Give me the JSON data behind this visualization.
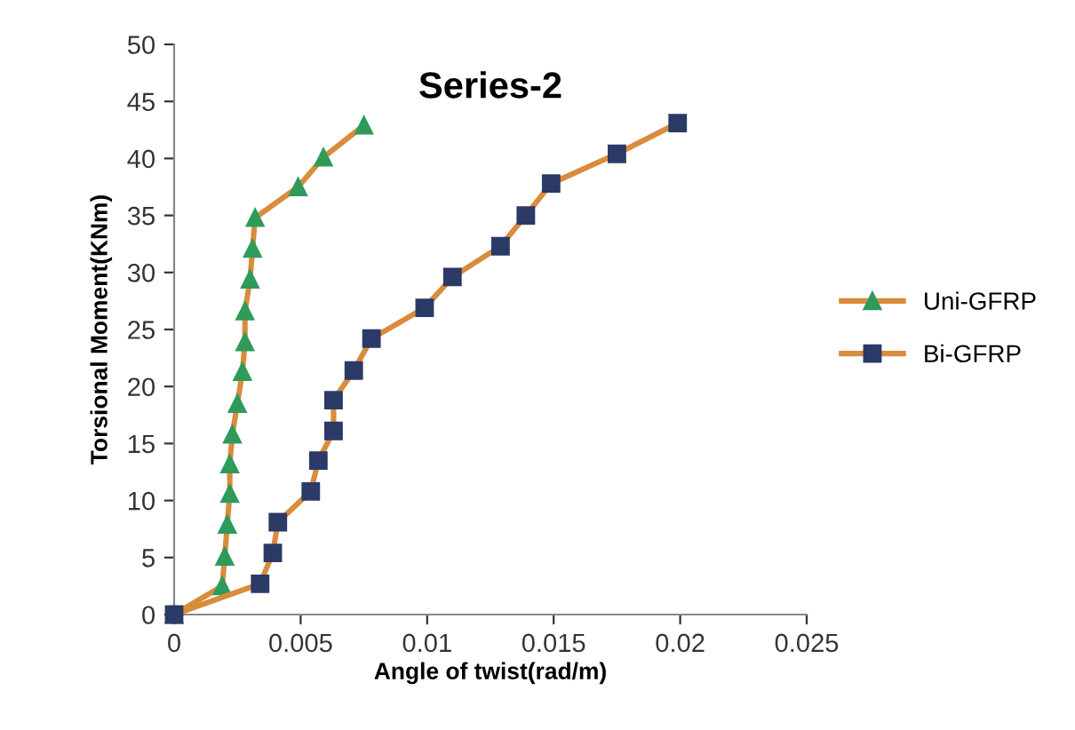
{
  "chart_data": {
    "type": "line",
    "title": "Series-2",
    "xlabel": "Angle of twist(rad/m)",
    "ylabel": "Torsional Moment(KNm)",
    "xlim": [
      0,
      0.025
    ],
    "xticks": [
      0,
      0.005,
      0.01,
      0.015,
      0.02,
      0.025
    ],
    "ylim": [
      0,
      50
    ],
    "yticks": [
      0,
      5,
      10,
      15,
      20,
      25,
      30,
      35,
      40,
      45,
      50
    ],
    "grid": false,
    "legend": "right",
    "line_style": "solid",
    "series": [
      {
        "name": "Uni-GFRP",
        "color": "#2e9b5a",
        "marker": "triangle",
        "x": [
          0,
          0.0019,
          0.002,
          0.0021,
          0.0022,
          0.0022,
          0.0023,
          0.0025,
          0.0027,
          0.0028,
          0.0028,
          0.003,
          0.0031,
          0.0032,
          0.0049,
          0.0059,
          0.0075
        ],
        "values": [
          0,
          2.5,
          5.1,
          7.9,
          10.6,
          13.2,
          15.8,
          18.5,
          21.3,
          23.9,
          26.6,
          29.4,
          32.1,
          34.8,
          37.5,
          40.1,
          42.9
        ]
      },
      {
        "name": "Bi-GFRP",
        "color": "#2b3a67",
        "marker": "square",
        "x": [
          0,
          0.0034,
          0.0039,
          0.0041,
          0.0054,
          0.0057,
          0.0063,
          0.0063,
          0.0071,
          0.0078,
          0.0099,
          0.011,
          0.0129,
          0.0139,
          0.0149,
          0.0175,
          0.0199
        ],
        "values": [
          0,
          2.7,
          5.4,
          8.1,
          10.8,
          13.5,
          16.1,
          18.8,
          21.4,
          24.2,
          26.9,
          29.6,
          32.3,
          35.0,
          37.8,
          40.4,
          43.1
        ]
      }
    ]
  }
}
